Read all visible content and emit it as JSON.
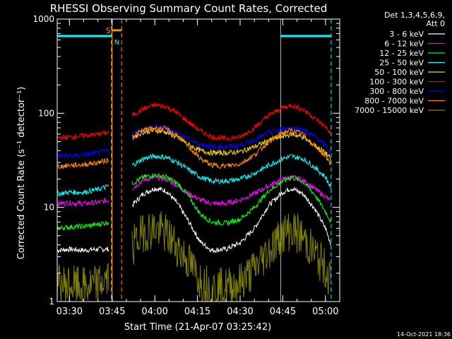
{
  "chart_data": {
    "type": "line",
    "title": "RHESSI Observing Summary Count Rates, Corrected",
    "xlabel": "Start Time (21-Apr-07 03:25:42)",
    "ylabel": "Corrected Count Rate (s⁻¹ detector⁻¹)",
    "yscale": "log",
    "ylim": [
      1,
      1000
    ],
    "xlim": [
      "03:25:42",
      "05:05:00"
    ],
    "y_ticks": [
      "1",
      "10",
      "100",
      "1000"
    ],
    "x_ticks": [
      "03:30",
      "03:45",
      "04:00",
      "04:15",
      "04:30",
      "04:45",
      "05:00"
    ],
    "legend_header": [
      "Det 1,3,4,5,6,9,",
      "Att 0"
    ],
    "legend_placement": "right",
    "grid": false,
    "timestamp": "14-Oct-2021 18:36",
    "markers": {
      "saa_label": "S",
      "night_label": "N",
      "night_color": "#00ffff",
      "saa_color": "#ff8c00",
      "night_intervals": [
        [
          "03:25:42",
          "03:44:45"
        ],
        [
          "04:44:15",
          "05:02:00"
        ]
      ],
      "saa_interval": [
        "03:45:00",
        "03:48:20"
      ]
    },
    "gap": [
      "03:48:20",
      "03:51:30"
    ],
    "series": [
      {
        "name": "3 - 6 keV",
        "color": "#ffffff",
        "points": [
          [
            "03:25:42",
            3.5
          ],
          [
            "03:30",
            3.6
          ],
          [
            "03:35",
            3.5
          ],
          [
            "03:40",
            3.6
          ],
          [
            "03:44",
            3.6
          ],
          [
            "03:52",
            10.5
          ],
          [
            "03:56",
            14
          ],
          [
            "04:00",
            16
          ],
          [
            "04:04",
            15
          ],
          [
            "04:08",
            11
          ],
          [
            "04:12",
            7
          ],
          [
            "04:16",
            4.3
          ],
          [
            "04:20",
            3.5
          ],
          [
            "04:25",
            3.6
          ],
          [
            "04:30",
            4.2
          ],
          [
            "04:35",
            6
          ],
          [
            "04:40",
            10.5
          ],
          [
            "04:45",
            14.5
          ],
          [
            "04:48",
            16
          ],
          [
            "04:52",
            14
          ],
          [
            "04:56",
            10
          ],
          [
            "05:00",
            6
          ],
          [
            "05:02",
            4
          ]
        ]
      },
      {
        "name": "6 - 12 keV",
        "color": "#ff00ff",
        "points": [
          [
            "03:25:42",
            11
          ],
          [
            "03:30",
            11.2
          ],
          [
            "03:35",
            11
          ],
          [
            "03:40",
            11.3
          ],
          [
            "03:44",
            12
          ],
          [
            "03:52",
            16
          ],
          [
            "03:56",
            19.5
          ],
          [
            "04:00",
            21
          ],
          [
            "04:04",
            20
          ],
          [
            "04:08",
            17
          ],
          [
            "04:12",
            14
          ],
          [
            "04:16",
            12
          ],
          [
            "04:20",
            11
          ],
          [
            "04:25",
            11
          ],
          [
            "04:30",
            12
          ],
          [
            "04:35",
            14
          ],
          [
            "04:40",
            17
          ],
          [
            "04:45",
            20
          ],
          [
            "04:48",
            21
          ],
          [
            "04:52",
            19.5
          ],
          [
            "04:56",
            16
          ],
          [
            "05:00",
            13
          ],
          [
            "05:02",
            11.5
          ]
        ]
      },
      {
        "name": "12 - 25 keV",
        "color": "#00ff00",
        "points": [
          [
            "03:25:42",
            6
          ],
          [
            "03:30",
            6.2
          ],
          [
            "03:35",
            6.3
          ],
          [
            "03:40",
            6.6
          ],
          [
            "03:44",
            7
          ],
          [
            "03:52",
            18
          ],
          [
            "03:56",
            21
          ],
          [
            "04:00",
            22
          ],
          [
            "04:04",
            21
          ],
          [
            "04:08",
            18
          ],
          [
            "04:12",
            13
          ],
          [
            "04:16",
            8.5
          ],
          [
            "04:20",
            7
          ],
          [
            "04:25",
            6.8
          ],
          [
            "04:30",
            7.5
          ],
          [
            "04:35",
            10
          ],
          [
            "04:40",
            15
          ],
          [
            "04:45",
            19
          ],
          [
            "04:48",
            21
          ],
          [
            "04:52",
            19
          ],
          [
            "04:56",
            14
          ],
          [
            "05:00",
            9
          ],
          [
            "05:02",
            7
          ]
        ]
      },
      {
        "name": "25 - 50 keV",
        "color": "#00ffff",
        "points": [
          [
            "03:25:42",
            14
          ],
          [
            "03:30",
            14.5
          ],
          [
            "03:35",
            14.5
          ],
          [
            "03:40",
            15.5
          ],
          [
            "03:44",
            17
          ],
          [
            "03:52",
            28
          ],
          [
            "03:56",
            33
          ],
          [
            "04:00",
            35
          ],
          [
            "04:04",
            34
          ],
          [
            "04:08",
            30
          ],
          [
            "04:12",
            25
          ],
          [
            "04:16",
            21
          ],
          [
            "04:20",
            19
          ],
          [
            "04:25",
            19
          ],
          [
            "04:30",
            20
          ],
          [
            "04:35",
            23
          ],
          [
            "04:40",
            28
          ],
          [
            "04:45",
            33
          ],
          [
            "04:48",
            35
          ],
          [
            "04:52",
            33
          ],
          [
            "04:56",
            27
          ],
          [
            "05:00",
            21
          ],
          [
            "05:02",
            16
          ]
        ]
      },
      {
        "name": "50 - 100 keV",
        "color": "#ffd700",
        "points": [
          [
            "03:52",
            55
          ],
          [
            "03:56",
            63
          ],
          [
            "04:00",
            66
          ],
          [
            "04:04",
            63
          ],
          [
            "04:08",
            55
          ],
          [
            "04:12",
            46
          ],
          [
            "04:16",
            40
          ],
          [
            "04:20",
            38
          ],
          [
            "04:25",
            38
          ],
          [
            "04:30",
            39
          ],
          [
            "04:35",
            44
          ],
          [
            "04:40",
            51
          ],
          [
            "04:45",
            57
          ],
          [
            "04:48",
            60
          ],
          [
            "04:52",
            56
          ],
          [
            "04:56",
            46
          ],
          [
            "05:00",
            38
          ],
          [
            "05:02",
            32
          ]
        ]
      },
      {
        "name": "100 - 300 keV",
        "color": "#ff0000",
        "points": [
          [
            "03:25:42",
            55
          ],
          [
            "03:30",
            56
          ],
          [
            "03:35",
            58
          ],
          [
            "03:40",
            60
          ],
          [
            "03:44",
            63
          ],
          [
            "03:52",
            95
          ],
          [
            "03:56",
            112
          ],
          [
            "04:00",
            122
          ],
          [
            "04:04",
            118
          ],
          [
            "04:08",
            100
          ],
          [
            "04:12",
            80
          ],
          [
            "04:16",
            65
          ],
          [
            "04:20",
            56
          ],
          [
            "04:25",
            54
          ],
          [
            "04:30",
            56
          ],
          [
            "04:35",
            70
          ],
          [
            "04:40",
            95
          ],
          [
            "04:45",
            115
          ],
          [
            "04:48",
            122
          ],
          [
            "04:52",
            110
          ],
          [
            "04:56",
            90
          ],
          [
            "05:00",
            72
          ],
          [
            "05:02",
            60
          ]
        ]
      },
      {
        "name": "300 - 800 keV",
        "color": "#0000ff",
        "points": [
          [
            "03:25:42",
            35
          ],
          [
            "03:30",
            35.5
          ],
          [
            "03:35",
            36
          ],
          [
            "03:40",
            38
          ],
          [
            "03:44",
            41
          ],
          [
            "03:52",
            60
          ],
          [
            "03:56",
            68
          ],
          [
            "04:00",
            71
          ],
          [
            "04:04",
            69
          ],
          [
            "04:08",
            62
          ],
          [
            "04:12",
            53
          ],
          [
            "04:16",
            47
          ],
          [
            "04:20",
            44
          ],
          [
            "04:25",
            44
          ],
          [
            "04:30",
            46
          ],
          [
            "04:35",
            52
          ],
          [
            "04:40",
            62
          ],
          [
            "04:45",
            68
          ],
          [
            "04:48",
            70
          ],
          [
            "04:52",
            67
          ],
          [
            "04:56",
            57
          ],
          [
            "05:00",
            46
          ],
          [
            "05:02",
            38
          ]
        ]
      },
      {
        "name": "800 - 7000 keV",
        "color": "#ff8c00",
        "points": [
          [
            "03:25:42",
            27
          ],
          [
            "03:30",
            28
          ],
          [
            "03:35",
            28.5
          ],
          [
            "03:40",
            30
          ],
          [
            "03:44",
            32
          ],
          [
            "03:52",
            57
          ],
          [
            "03:56",
            66
          ],
          [
            "04:00",
            70
          ],
          [
            "04:04",
            68
          ],
          [
            "04:08",
            58
          ],
          [
            "04:12",
            44
          ],
          [
            "04:16",
            33
          ],
          [
            "04:20",
            28
          ],
          [
            "04:25",
            27.5
          ],
          [
            "04:30",
            29
          ],
          [
            "04:35",
            36
          ],
          [
            "04:40",
            50
          ],
          [
            "04:45",
            62
          ],
          [
            "04:48",
            66
          ],
          [
            "04:52",
            60
          ],
          [
            "04:56",
            46
          ],
          [
            "05:00",
            35
          ],
          [
            "05:02",
            29
          ]
        ]
      },
      {
        "name": "7000 - 15000 keV",
        "color": "#808000",
        "points": [
          [
            "03:25:42",
            1.5
          ],
          [
            "03:30",
            1.5
          ],
          [
            "03:35",
            1.4
          ],
          [
            "03:40",
            1.5
          ],
          [
            "03:44",
            1.8
          ],
          [
            "03:52",
            3.8
          ],
          [
            "03:56",
            5.5
          ],
          [
            "04:00",
            6
          ],
          [
            "04:04",
            5.2
          ],
          [
            "04:08",
            3.8
          ],
          [
            "04:12",
            2.6
          ],
          [
            "04:16",
            1.7
          ],
          [
            "04:20",
            1.4
          ],
          [
            "04:25",
            1.4
          ],
          [
            "04:30",
            1.6
          ],
          [
            "04:35",
            2.2
          ],
          [
            "04:40",
            3.5
          ],
          [
            "04:45",
            5.2
          ],
          [
            "04:48",
            5.8
          ],
          [
            "04:52",
            4.8
          ],
          [
            "04:56",
            3.3
          ],
          [
            "05:00",
            2.2
          ],
          [
            "05:02",
            1.6
          ]
        ]
      }
    ]
  }
}
